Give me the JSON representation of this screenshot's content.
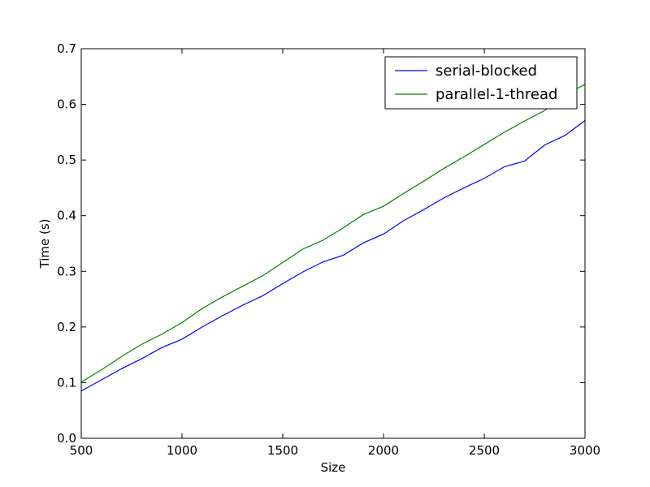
{
  "chart_data": {
    "type": "line",
    "title": "",
    "xlabel": "Size",
    "ylabel": "Time (s)",
    "xlim": [
      500,
      3000
    ],
    "ylim": [
      0.0,
      0.7
    ],
    "xticks": [
      500,
      1000,
      1500,
      2000,
      2500,
      3000
    ],
    "xtick_labels": [
      "500",
      "1000",
      "1500",
      "2000",
      "2500",
      "3000"
    ],
    "yticks": [
      0.0,
      0.1,
      0.2,
      0.3,
      0.4,
      0.5,
      0.6,
      0.7
    ],
    "ytick_labels": [
      "0.0",
      "0.1",
      "0.2",
      "0.3",
      "0.4",
      "0.5",
      "0.6",
      "0.7"
    ],
    "grid": false,
    "legend_position": "top-right",
    "x": [
      500,
      600,
      700,
      800,
      900,
      1000,
      1100,
      1200,
      1300,
      1400,
      1500,
      1600,
      1700,
      1800,
      1900,
      2000,
      2100,
      2200,
      2300,
      2400,
      2500,
      2600,
      2700,
      2800,
      2900,
      3000
    ],
    "series": [
      {
        "name": "serial-blocked",
        "color": "#0000ff",
        "values": [
          0.085,
          0.105,
          0.125,
          0.143,
          0.163,
          0.178,
          0.2,
          0.22,
          0.239,
          0.256,
          0.278,
          0.299,
          0.317,
          0.329,
          0.351,
          0.367,
          0.391,
          0.411,
          0.432,
          0.45,
          0.467,
          0.488,
          0.498,
          0.527,
          0.544,
          0.571
        ]
      },
      {
        "name": "parallel-1-thread",
        "color": "#008000",
        "values": [
          0.101,
          0.123,
          0.147,
          0.169,
          0.187,
          0.208,
          0.233,
          0.254,
          0.273,
          0.292,
          0.316,
          0.34,
          0.356,
          0.378,
          0.402,
          0.417,
          0.44,
          0.462,
          0.485,
          0.506,
          0.528,
          0.55,
          0.57,
          0.589,
          0.617,
          0.636
        ]
      }
    ]
  }
}
